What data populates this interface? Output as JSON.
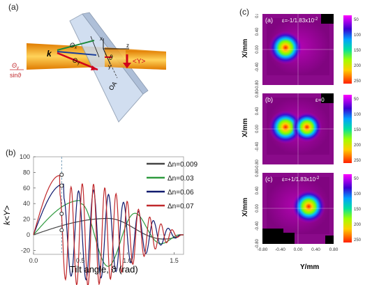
{
  "figure": {
    "panel_a_label": "(a)",
    "panel_b_label": "(b)",
    "panel_c_label": "(c)"
  },
  "diagram": {
    "k_label": "k",
    "theta_x": "Θ",
    "theta_x_sub": "x",
    "theta_y": "Θ",
    "theta_y_sub": "y",
    "vartheta": "ϑ",
    "avg_y_label": "<Y>",
    "fraction_num": "Θ",
    "fraction_num_sub": "y",
    "fraction_den": "sinϑ",
    "axis_x": "x",
    "axis_y": "y",
    "axis_z": "z",
    "optical_axis": "OA",
    "colors": {
      "beam": "#f5a623",
      "plate": "#c8d8ec",
      "arrow_red": "#d0021b",
      "arrow_green": "#1e8a3c",
      "arrow_blue": "#1c3f9a"
    }
  },
  "chart_data": {
    "type": "line",
    "title": "",
    "xlabel": "Tilt angle, ϑ (rad)",
    "ylabel": "k<Y>",
    "xlim": [
      0.0,
      1.6
    ],
    "ylim": [
      -25,
      100
    ],
    "xticks": [
      "0.0",
      "0.5",
      "1.0",
      "1.5"
    ],
    "yticks": [
      "-20",
      "0",
      "20",
      "40",
      "60",
      "80",
      "100"
    ],
    "vline_x": 0.3,
    "series": [
      {
        "name": "Δn=0.009",
        "color": "#444444",
        "peak_x": 0.8,
        "peak_y": 21,
        "period": 1.6
      },
      {
        "name": "Δn=0.03",
        "color": "#2e9a3e",
        "peak_x": 0.5,
        "peak_y": 44,
        "period": 0.6
      },
      {
        "name": "Δn=0.06",
        "color": "#101a6e",
        "peak_x": 0.32,
        "peak_y": 65,
        "period": 0.16
      },
      {
        "name": "Δn=0.07",
        "color": "#c0282b",
        "peak_x": 0.28,
        "peak_y": 76,
        "period": 0.12
      }
    ],
    "markers": [
      {
        "x": 0.3,
        "y": 77
      },
      {
        "x": 0.3,
        "y": 63
      },
      {
        "x": 0.3,
        "y": 27
      },
      {
        "x": 0.3,
        "y": 6
      }
    ]
  },
  "heatmaps": {
    "ylabel": "X/mm",
    "xlabel": "Y/mm",
    "yticks": [
      "0.80",
      "0.40",
      "0.00",
      "-0.40",
      "-0.80"
    ],
    "xticks": [
      "-0.80",
      "-0.40",
      "0.00",
      "0.40",
      "0.80"
    ],
    "colorbar_ticks": [
      "50",
      "100",
      "150",
      "200",
      "250"
    ],
    "maps": [
      {
        "label": "(a)",
        "epsilon": "ε=-1/1.83x10",
        "exp": "-2",
        "spots": [
          {
            "x": -0.35,
            "y": 0.05,
            "intensity": 1.0
          }
        ]
      },
      {
        "label": "(b)",
        "epsilon": "ε=0",
        "exp": "",
        "spots": [
          {
            "x": -0.35,
            "y": 0.05,
            "intensity": 1.0
          },
          {
            "x": 0.25,
            "y": 0.05,
            "intensity": 0.9
          }
        ]
      },
      {
        "label": "(c)",
        "epsilon": "ε=+1/1.83x10",
        "exp": "-2",
        "spots": [
          {
            "x": 0.3,
            "y": 0.05,
            "intensity": 1.0
          }
        ]
      }
    ]
  }
}
